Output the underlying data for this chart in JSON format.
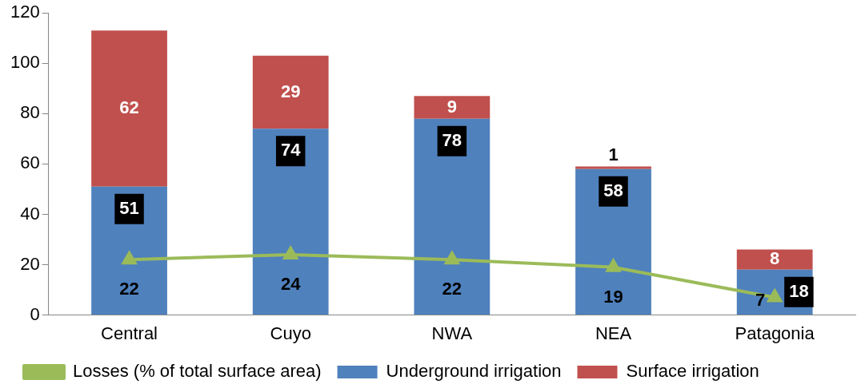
{
  "chart_data": {
    "type": "bar",
    "stacked": true,
    "categories": [
      "Central",
      "Cuyo",
      "NWA",
      "NEA",
      "Patagonia"
    ],
    "series": [
      {
        "name": "Underground irrigation",
        "color": "#4f81bd",
        "values": [
          51,
          74,
          78,
          58,
          18
        ]
      },
      {
        "name": "Surface irrigation",
        "color": "#c0504d",
        "values": [
          62,
          29,
          9,
          1,
          8
        ]
      },
      {
        "name": "Losses (% of total surface area)",
        "type": "line",
        "color": "#9bbb59",
        "marker": "triangle",
        "values": [
          22,
          24,
          22,
          19,
          7
        ]
      }
    ],
    "ylim": [
      0,
      120
    ],
    "yticks": [
      0,
      20,
      40,
      60,
      80,
      100,
      120
    ],
    "grid": false,
    "legend": "bottom",
    "data_labels": true
  }
}
